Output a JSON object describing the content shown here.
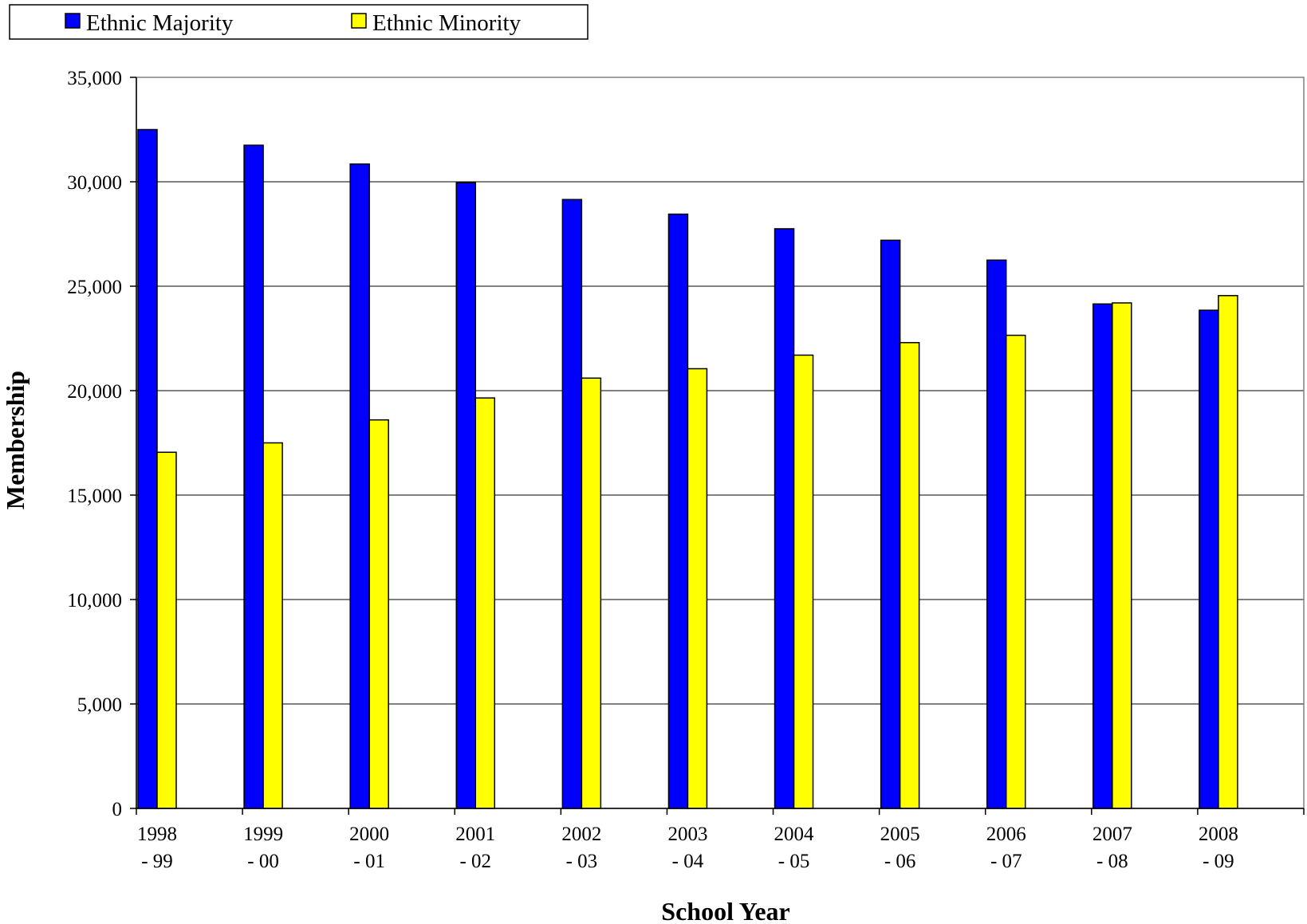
{
  "chart_data": {
    "type": "bar",
    "title": "",
    "xlabel": "School Year",
    "ylabel": "Membership",
    "ylim": [
      0,
      35000
    ],
    "yticks": [
      0,
      5000,
      10000,
      15000,
      20000,
      25000,
      30000,
      35000
    ],
    "ytick_labels": [
      "0",
      "5,000",
      "10,000",
      "15,000",
      "20,000",
      "25,000",
      "30,000",
      "35,000"
    ],
    "grid": true,
    "legend_position": "top-left",
    "categories": [
      [
        "1998",
        "- 99"
      ],
      [
        "1999",
        "- 00"
      ],
      [
        "2000",
        "- 01"
      ],
      [
        "2001",
        "- 02"
      ],
      [
        "2002",
        "- 03"
      ],
      [
        "2003",
        "- 04"
      ],
      [
        "2004",
        "- 05"
      ],
      [
        "2005",
        "- 06"
      ],
      [
        "2006",
        "- 07"
      ],
      [
        "2007",
        "- 08"
      ],
      [
        "2008",
        "- 09"
      ]
    ],
    "series": [
      {
        "name": "Ethnic Majority",
        "color": "#0000ff",
        "values": [
          32500,
          31750,
          30850,
          29950,
          29150,
          28450,
          27750,
          27200,
          26250,
          24150,
          23850
        ]
      },
      {
        "name": "Ethnic Minority",
        "color": "#ffff00",
        "values": [
          17050,
          17500,
          18600,
          19650,
          20600,
          21050,
          21700,
          22300,
          22650,
          24200,
          24550
        ]
      }
    ]
  }
}
